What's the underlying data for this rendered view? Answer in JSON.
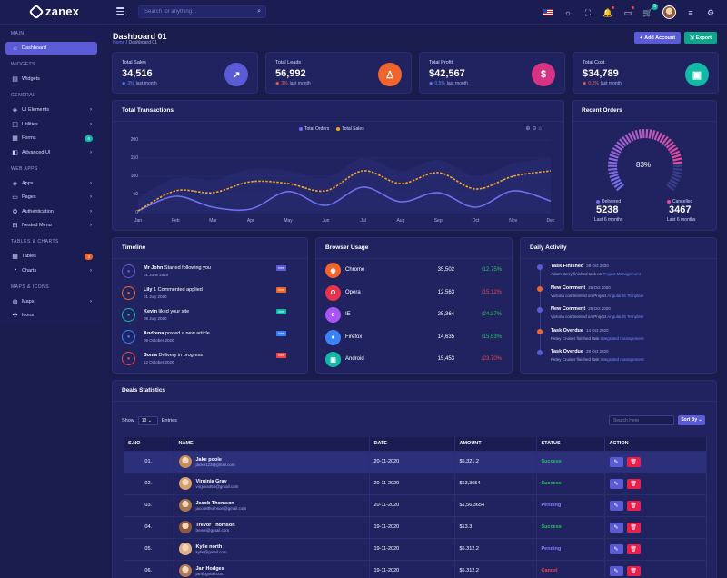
{
  "app": {
    "name": "zanex"
  },
  "header": {
    "search_placeholder": "Search for anything...",
    "cart_count": "5"
  },
  "sidebar": {
    "sections": {
      "main": "MAIN",
      "widgets": "WIDGETS",
      "general": "GENERAL",
      "webapps": "WEB APPS",
      "tables": "TABLES & CHARTS",
      "maps": "MAPS & ICONS"
    },
    "items": {
      "dashboard": "Dashboard",
      "widgets": "Widgets",
      "ui": "UI Elements",
      "utilities": "Utilities",
      "forms": "Forms",
      "forms_badge": "6",
      "advanced": "Advanced UI",
      "apps": "Apps",
      "pages": "Pages",
      "auth": "Authentication",
      "nested": "Nested Menu",
      "tables": "Tables",
      "tables_badge": "3",
      "charts": "Charts",
      "maps": "Maps",
      "icons": "Icons"
    }
  },
  "page": {
    "title": "Dashboard 01",
    "breadcrumb_home": "Home",
    "breadcrumb_sep": "/",
    "breadcrumb_current": "Dashboard 01",
    "add_account": "Add Account",
    "export": "Export"
  },
  "stats": [
    {
      "label": "Total Sales",
      "value": "34,516",
      "change": "3%",
      "note": "last month",
      "icon": "trending-up-icon",
      "color": "#5b5bd6"
    },
    {
      "label": "Total Leads",
      "value": "56,992",
      "change": "3%",
      "note": "last month",
      "icon": "user-icon",
      "color": "#f0642d"
    },
    {
      "label": "Total Profit",
      "value": "$42,567",
      "change": "0.5%",
      "note": "last month",
      "icon": "dollar-icon",
      "color": "#d63384"
    },
    {
      "label": "Total Cost",
      "value": "$34,789",
      "change": "0.2%",
      "note": "last month",
      "icon": "briefcase-icon",
      "color": "#14b8a6"
    }
  ],
  "transactions": {
    "title": "Total Transactions",
    "legend_orders": "Total Orders",
    "legend_sales": "Total Sales"
  },
  "chart_data": {
    "type": "line",
    "title": "Total Transactions",
    "categories": [
      "Jan",
      "Feb",
      "Mar",
      "Apr",
      "May",
      "Jun",
      "Jul",
      "Aug",
      "Sep",
      "Oct",
      "Nov",
      "Dec"
    ],
    "ylim": [
      0,
      200
    ],
    "yticks": [
      0,
      50,
      100,
      150,
      200
    ],
    "series": [
      {
        "name": "Total Orders",
        "color": "#6f6ff0",
        "values": [
          5,
          45,
          15,
          10,
          58,
          20,
          70,
          30,
          55,
          15,
          60,
          32
        ]
      },
      {
        "name": "Total Sales",
        "color": "#f5a623",
        "values": [
          5,
          60,
          55,
          85,
          80,
          60,
          115,
          80,
          110,
          65,
          100,
          115
        ]
      }
    ]
  },
  "recent_orders": {
    "title": "Recent Orders",
    "percent": "83%",
    "percent_value": 83,
    "delivered_label": "Delivered",
    "delivered_value": "5238",
    "delivered_note": "Last 6 months",
    "cancelled_label": "Cancelled",
    "cancelled_value": "3467",
    "cancelled_note": "Last 6 months"
  },
  "timeline": {
    "title": "Timeline",
    "items": [
      {
        "name": "Mr John",
        "text": "Started following you",
        "date": "01 June 2020",
        "badge": "new",
        "color": "#5b5bd6",
        "icon": "user-plus-icon"
      },
      {
        "name": "Lily",
        "text": "1 Commented applied",
        "date": "01 July 2020",
        "badge": "new",
        "color": "#f0642d",
        "icon": "comment-icon"
      },
      {
        "name": "Kevin",
        "text": "liked your site",
        "date": "05 July 2020",
        "badge": "new",
        "color": "#14b8a6",
        "icon": "thumbs-up-icon"
      },
      {
        "name": "Andrena",
        "text": "posted a new article",
        "date": "09 October 2020",
        "badge": "new",
        "color": "#3b82f6",
        "icon": "mail-icon"
      },
      {
        "name": "Sonia",
        "text": "Delivery in progress",
        "date": "12 October 2020",
        "badge": "new",
        "color": "#ef4444",
        "icon": "bag-icon"
      }
    ]
  },
  "browser_usage": {
    "title": "Browser Usage",
    "items": [
      {
        "name": "Chrome",
        "count": "35,502",
        "change": "12.75%",
        "trend": "up",
        "color": "#f0642d",
        "letter": "◉"
      },
      {
        "name": "Opera",
        "count": "12,563",
        "change": "15.12%",
        "trend": "down",
        "color": "#e8344a",
        "letter": "O"
      },
      {
        "name": "IE",
        "count": "25,364",
        "change": "24.37%",
        "trend": "up",
        "color": "#a855f7",
        "letter": "e"
      },
      {
        "name": "Firefox",
        "count": "14,635",
        "change": "15,63%",
        "trend": "up",
        "color": "#3b82f6",
        "letter": "●"
      },
      {
        "name": "Android",
        "count": "15,453",
        "change": "23.70%",
        "trend": "down",
        "color": "#14b8a6",
        "letter": "▣"
      }
    ]
  },
  "daily_activity": {
    "title": "Daily Activity",
    "items": [
      {
        "title": "Task Finished",
        "date": "29 Oct 2020",
        "desc": "Adam Berry finished task on",
        "link": "Project Management",
        "color": "#5b5bd6"
      },
      {
        "title": "New Comment",
        "date": "25 Oct 2020",
        "desc": "Victoria commented on Project",
        "link": "AngularJS Template",
        "color": "#f0642d"
      },
      {
        "title": "New Comment",
        "date": "25 Oct 2020",
        "desc": "Victoria commented on Project",
        "link": "AngularJS Template",
        "color": "#5b5bd6"
      },
      {
        "title": "Task Overdue",
        "date": "14 Oct 2020",
        "desc": "Petey Cruiser finished task",
        "link": "Integrated management",
        "color": "#f0642d"
      },
      {
        "title": "Task Overdue",
        "date": "29 Oct 2020",
        "desc": "Petey Cruiser finished task",
        "link": "Integrated management",
        "color": "#5b5bd6"
      }
    ]
  },
  "deals": {
    "title": "Deals Statistics",
    "show_label": "Show",
    "entries_value": "10",
    "entries_label": "Entries",
    "search_placeholder": "Search Here",
    "sort_label": "Sort By",
    "columns": [
      "S.NO",
      "NAME",
      "DATE",
      "AMOUNT",
      "STATUS",
      "ACTION"
    ],
    "rows": [
      {
        "sno": "01.",
        "name": "Jake poole",
        "email": "jacke123@gmail.com",
        "date": "20-11-2020",
        "amount": "$5.321.2",
        "status": "Success",
        "status_color": "#22c55e"
      },
      {
        "sno": "02.",
        "name": "Virginia Gray",
        "email": "virginia456@gmail.com",
        "date": "20-11-2020",
        "amount": "$53,3654",
        "status": "Success",
        "status_color": "#22c55e"
      },
      {
        "sno": "03.",
        "name": "Jacob Thomson",
        "email": "jacob8thomson@gmail.com",
        "date": "20-11-2020",
        "amount": "$1,56,3654",
        "status": "Pending",
        "status_color": "#8b7cff"
      },
      {
        "sno": "04.",
        "name": "Trevor Thomson",
        "email": "trevor@gmail.com",
        "date": "19-11-2020",
        "amount": "$13.3",
        "status": "Success",
        "status_color": "#22c55e"
      },
      {
        "sno": "05.",
        "name": "Kylie north",
        "email": "kylie@gmail.com",
        "date": "19-11-2020",
        "amount": "$5.312.2",
        "status": "Pending",
        "status_color": "#8b7cff"
      },
      {
        "sno": "06.",
        "name": "Jan Hodges",
        "email": "jan@gmail.com",
        "date": "19-11-2020",
        "amount": "$5.312.2",
        "status": "Cancel",
        "status_color": "#ef4444"
      }
    ]
  }
}
